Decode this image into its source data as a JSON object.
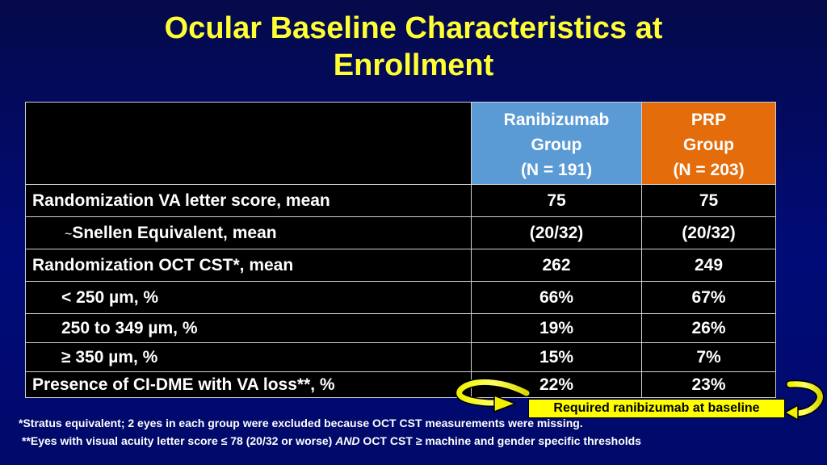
{
  "slide": {
    "title_line1": "Ocular Baseline Characteristics at",
    "title_line2": "Enrollment"
  },
  "table": {
    "headers": {
      "ranibizumab": [
        "Ranibizumab",
        "Group",
        "(N = 191)"
      ],
      "prp": [
        "PRP",
        "Group",
        "(N = 203)"
      ]
    },
    "rows": [
      {
        "label": "Randomization VA letter score, mean",
        "ranibizumab": "75",
        "prp": "75"
      },
      {
        "prefix": "~",
        "label": "Snellen Equivalent, mean",
        "ranibizumab": "(20/32)",
        "prp": "(20/32)"
      },
      {
        "label": "Randomization OCT CST*, mean",
        "ranibizumab": "262",
        "prp": "249"
      },
      {
        "label": "< 250 µm, %",
        "ranibizumab": "66%",
        "prp": "67%"
      },
      {
        "label": "250 to 349 µm, %",
        "ranibizumab": "19%",
        "prp": "26%"
      },
      {
        "label": "≥ 350 µm, %",
        "ranibizumab": "15%",
        "prp": "7%"
      },
      {
        "label": "Presence of CI-DME with VA loss**, %",
        "ranibizumab": "22%",
        "prp": "23%"
      }
    ]
  },
  "callout": {
    "text": "Required ranibizumab at baseline"
  },
  "footnotes": {
    "line1": "*Stratus equivalent; 2 eyes in each group were excluded because OCT CST measurements were missing.",
    "line2_part1": "**Eyes with visual acuity letter score ≤ 78 (20/32 or worse) ",
    "line2_em": "AND",
    "line2_part2": " OCT CST ≥ machine and gender specific thresholds"
  },
  "colors": {
    "title": "#ffff33",
    "ranibizumab_header": "#5b9bd5",
    "prp_header": "#e46c0a",
    "callout_fill": "#ffff00"
  }
}
